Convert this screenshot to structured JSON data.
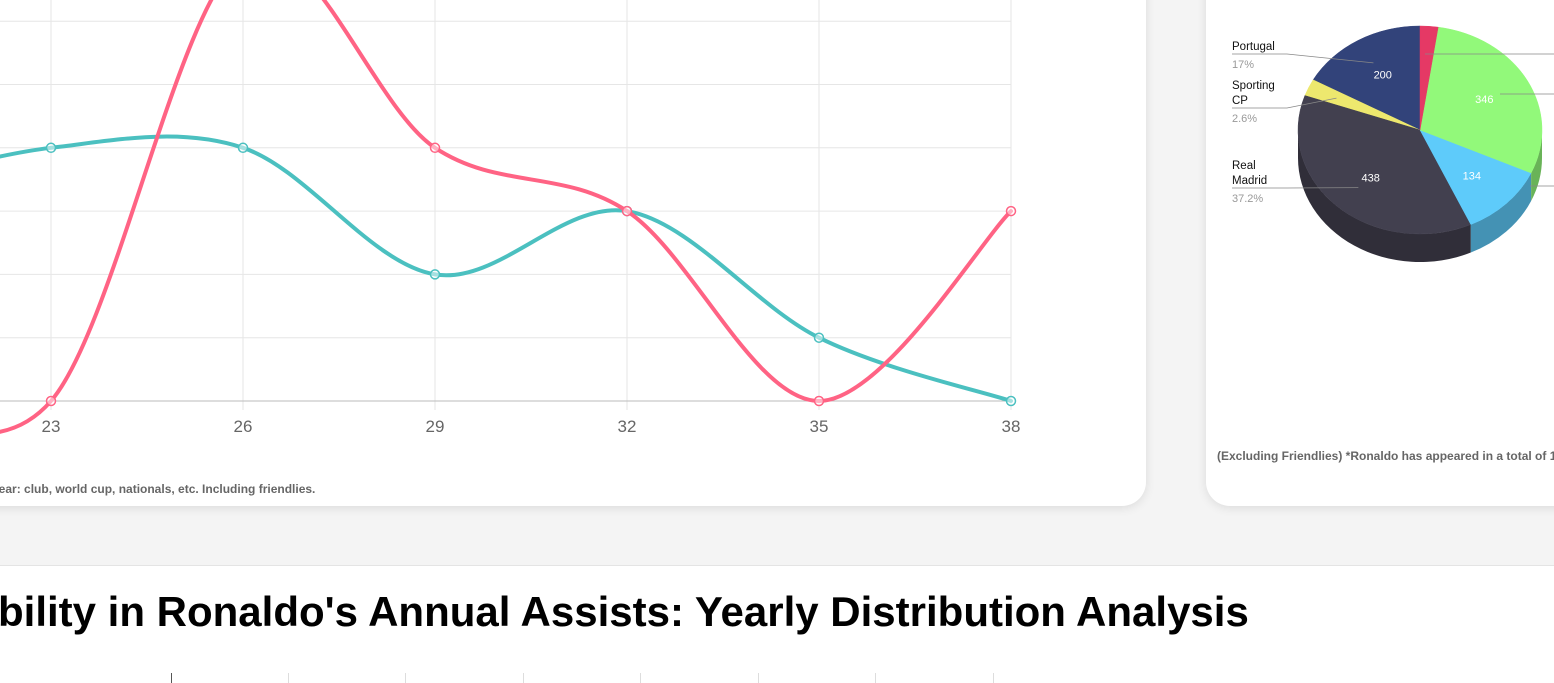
{
  "line_section": {
    "footnote": "year: club, world cup, nationals, etc. Including friendlies."
  },
  "pie_section": {
    "footnote": "(Excluding Friendlies) *Ronaldo has appeared in a total of 1"
  },
  "assists_section": {
    "title": "bility in Ronaldo's Annual Assists: Yearly Distribution Analysis"
  },
  "chart_data": [
    {
      "type": "line",
      "x": [
        23,
        26,
        29,
        32,
        35,
        38
      ],
      "x_tick_labels": [
        "23",
        "26",
        "29",
        "32",
        "35",
        "38"
      ],
      "series": [
        {
          "values": [
            4,
            null,
            2,
            3,
            1,
            0
          ],
          "color": "#4bc0c0",
          "y_at_left_edge": 3.3,
          "peak_after_23": 4.37
        },
        {
          "values": [
            0,
            null,
            4,
            3,
            0,
            3
          ],
          "color": "#ff6384",
          "y_at_left_edge": 0,
          "above_plot_between": [
            24.8,
            27.2
          ]
        }
      ],
      "series_values_at_26": [
        4,
        7
      ],
      "ylim": [
        0,
        6.5
      ],
      "grid": true,
      "point_markers": true
    },
    {
      "type": "pie",
      "style": "3d",
      "slices": [
        {
          "label": "Portugal",
          "value": 200,
          "percent": "17%",
          "color": "#32437a",
          "value_label": "200"
        },
        {
          "label": "Sporting CP",
          "value": 31,
          "percent": "2.6%",
          "color": "#ede86e",
          "value_label": ""
        },
        {
          "label": "Real Madrid",
          "value": 438,
          "percent": "37.2%",
          "color": "#42404f",
          "value_label": "438"
        },
        {
          "label": "",
          "value": 134,
          "percent": "",
          "color": "#5ecbfa",
          "value_label": "134"
        },
        {
          "label": "",
          "value": 346,
          "percent": "",
          "color": "#92f97a",
          "value_label": "346"
        },
        {
          "label": "",
          "value": 28,
          "percent": "",
          "color": "#e53965",
          "value_label": ""
        }
      ]
    }
  ]
}
